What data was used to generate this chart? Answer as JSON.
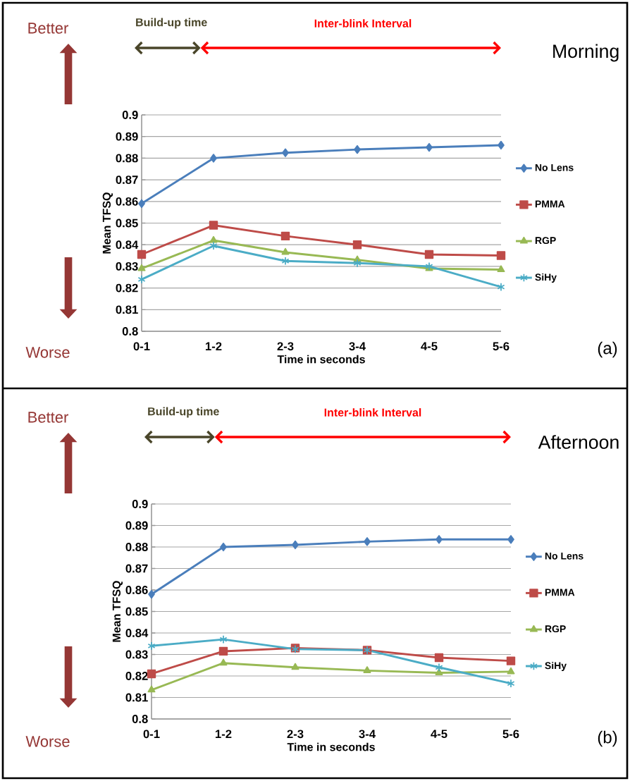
{
  "chart_data": [
    {
      "type": "line",
      "xlabel": "Time in seconds",
      "ylabel": "Mean TFSQ",
      "categories": [
        "0-1",
        "1-2",
        "2-3",
        "3-4",
        "4-5",
        "5-6"
      ],
      "series": [
        {
          "name": "No Lens",
          "color": "#4a7ebb",
          "marker": "diamond",
          "values": [
            0.859,
            0.88,
            0.8825,
            0.884,
            0.885,
            0.886
          ]
        },
        {
          "name": "PMMA",
          "color": "#be4b48",
          "marker": "square",
          "values": [
            0.8355,
            0.849,
            0.844,
            0.84,
            0.8355,
            0.835
          ]
        },
        {
          "name": "RGP",
          "color": "#98b954",
          "marker": "triangle",
          "values": [
            0.829,
            0.842,
            0.8365,
            0.833,
            0.829,
            0.8285
          ]
        },
        {
          "name": "SiHy",
          "color": "#4bacc6",
          "marker": "cross",
          "values": [
            0.824,
            0.8395,
            0.8325,
            0.8315,
            0.83,
            0.8205
          ]
        }
      ],
      "ylim": [
        0.8,
        0.9
      ],
      "yticks": [
        0.8,
        0.81,
        0.82,
        0.83,
        0.84,
        0.85,
        0.86,
        0.87,
        0.88,
        0.89,
        0.9
      ],
      "grid": "y",
      "legend": "right",
      "line_style": "solid",
      "annotations": [
        "Better",
        "Worse",
        "Build-up time",
        "Inter-blink Interval",
        "(a)",
        "Morning"
      ]
    },
    {
      "type": "line",
      "xlabel": "Time in seconds",
      "ylabel": "Mean TFSQ",
      "categories": [
        "0-1",
        "1-2",
        "2-3",
        "3-4",
        "4-5",
        "5-6"
      ],
      "series": [
        {
          "name": "No Lens",
          "color": "#4a7ebb",
          "marker": "diamond",
          "values": [
            0.858,
            0.88,
            0.881,
            0.8825,
            0.8835,
            0.8835
          ]
        },
        {
          "name": "PMMA",
          "color": "#be4b48",
          "marker": "square",
          "values": [
            0.821,
            0.8315,
            0.833,
            0.832,
            0.8285,
            0.827
          ]
        },
        {
          "name": "RGP",
          "color": "#98b954",
          "marker": "triangle",
          "values": [
            0.8135,
            0.826,
            0.824,
            0.8225,
            0.8215,
            0.822
          ]
        },
        {
          "name": "SiHy",
          "color": "#4bacc6",
          "marker": "cross",
          "values": [
            0.834,
            0.837,
            0.8325,
            0.832,
            0.824,
            0.8165
          ]
        }
      ],
      "ylim": [
        0.8,
        0.9
      ],
      "yticks": [
        0.8,
        0.81,
        0.82,
        0.83,
        0.84,
        0.85,
        0.86,
        0.87,
        0.88,
        0.89,
        0.9
      ],
      "grid": "y",
      "legend": "right",
      "line_style": "solid",
      "annotations": [
        "Better",
        "Worse",
        "Build-up time",
        "Inter-blink Interval",
        "(b)",
        "Afternoon"
      ]
    }
  ]
}
